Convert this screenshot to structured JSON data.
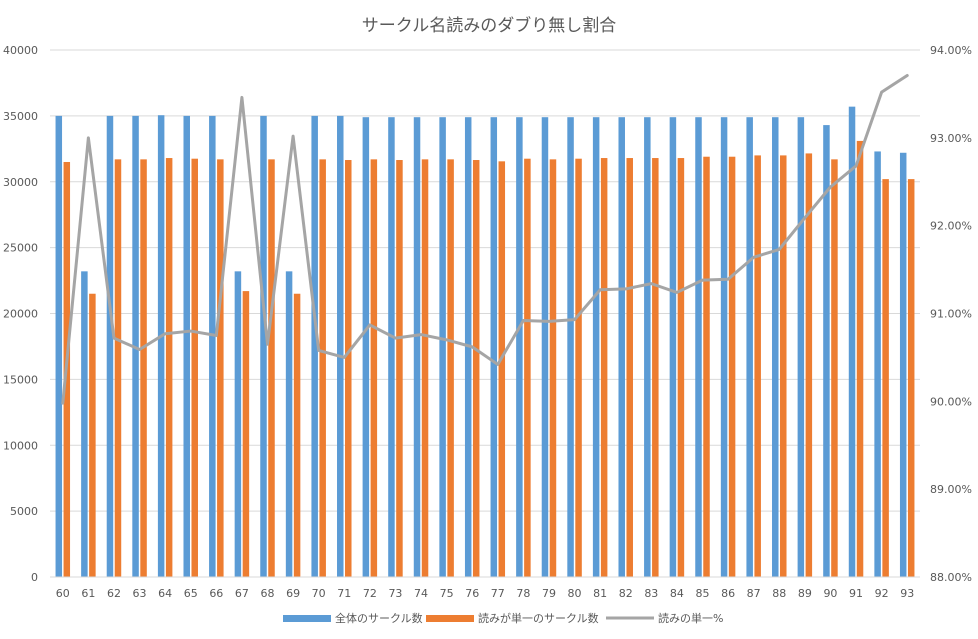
{
  "chart_data": {
    "type": "bar",
    "title": "サークル名読みのダブり無し割合",
    "categories": [
      "60",
      "61",
      "62",
      "63",
      "64",
      "65",
      "66",
      "67",
      "68",
      "69",
      "70",
      "71",
      "72",
      "73",
      "74",
      "75",
      "76",
      "77",
      "78",
      "79",
      "80",
      "81",
      "82",
      "83",
      "84",
      "85",
      "86",
      "87",
      "88",
      "89",
      "90",
      "91",
      "92",
      "93"
    ],
    "series": [
      {
        "name": "全体のサークル数",
        "kind": "bar",
        "axis": "left",
        "color": "#5B9BD5",
        "values": [
          35000,
          23200,
          35000,
          35000,
          35050,
          35000,
          35000,
          23200,
          35000,
          23200,
          35000,
          35000,
          34900,
          34900,
          34900,
          34900,
          34900,
          34900,
          34900,
          34900,
          34900,
          34900,
          34900,
          34900,
          34900,
          34900,
          34900,
          34900,
          34900,
          34900,
          34300,
          35700,
          32300,
          32200
        ]
      },
      {
        "name": "読みが単一のサークル数",
        "kind": "bar",
        "axis": "left",
        "color": "#ED7D31",
        "values": [
          31500,
          21500,
          31700,
          31700,
          31800,
          31750,
          31700,
          21700,
          31700,
          21500,
          31700,
          31650,
          31700,
          31650,
          31700,
          31700,
          31650,
          31550,
          31750,
          31700,
          31750,
          31800,
          31800,
          31800,
          31800,
          31900,
          31900,
          32000,
          32000,
          32150,
          31700,
          33100,
          30200,
          30200
        ]
      },
      {
        "name": "読みの単一%",
        "kind": "line",
        "axis": "right",
        "color": "#A5A5A5",
        "values": [
          0.8998,
          0.93,
          0.9072,
          0.9059,
          0.9077,
          0.908,
          0.9075,
          0.9346,
          0.9065,
          0.9302,
          0.9058,
          0.905,
          0.9087,
          0.9072,
          0.9076,
          0.907,
          0.9062,
          0.9042,
          0.9092,
          0.9091,
          0.9093,
          0.9127,
          0.9128,
          0.9134,
          0.9124,
          0.9138,
          0.9139,
          0.9164,
          0.9173,
          0.9209,
          0.9244,
          0.9268,
          0.9352,
          0.9371
        ]
      }
    ],
    "y_left": {
      "min": 0,
      "max": 40000,
      "step": 5000,
      "ticks": [
        "0",
        "5000",
        "10000",
        "15000",
        "20000",
        "25000",
        "30000",
        "35000",
        "40000"
      ]
    },
    "y_right": {
      "min": 0.88,
      "max": 0.94,
      "step": 0.01,
      "ticks": [
        "88.00%",
        "89.00%",
        "90.00%",
        "91.00%",
        "92.00%",
        "93.00%",
        "94.00%"
      ]
    },
    "grid": true,
    "legend_position": "bottom",
    "gridline_color": "#D9D9D9",
    "text_color": "#595959"
  }
}
